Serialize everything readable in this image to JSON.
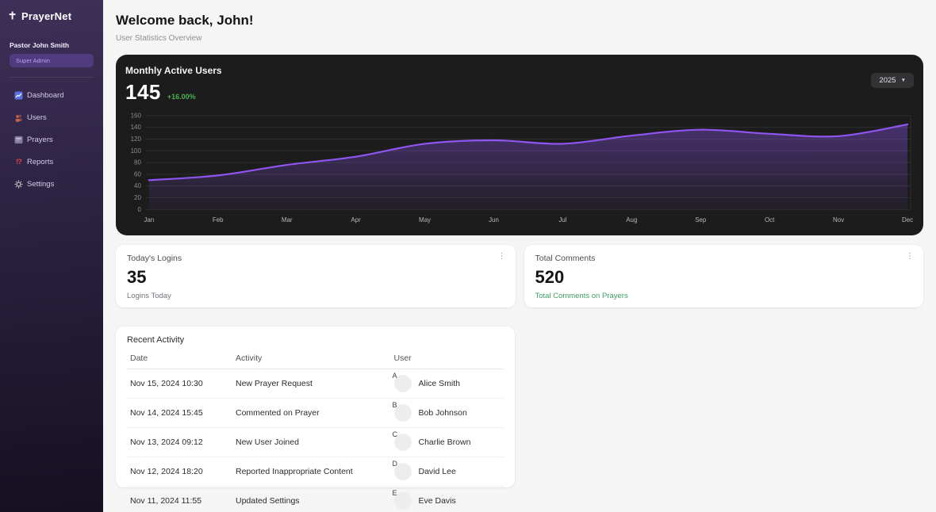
{
  "app": {
    "name": "PrayerNet",
    "logo_icon": "cross-icon"
  },
  "sidebar": {
    "user": {
      "name": "Pastor John Smith",
      "role": "Super Admin"
    },
    "items": [
      {
        "label": "Dashboard",
        "icon": "dashboard-icon"
      },
      {
        "label": "Users",
        "icon": "users-icon"
      },
      {
        "label": "Prayers",
        "icon": "prayers-icon"
      },
      {
        "label": "Reports",
        "icon": "reports-icon",
        "icon_glyph": "!?"
      },
      {
        "label": "Settings",
        "icon": "settings-icon"
      }
    ]
  },
  "header": {
    "title": "Welcome back, John!",
    "subtitle": "User Statistics Overview"
  },
  "chart_card": {
    "title": "Monthly Active Users",
    "value": "145",
    "delta": "+16.00%",
    "delta_color": "#4caf50",
    "year_selector": "2025",
    "chevron": "▼"
  },
  "chart_data": {
    "type": "area",
    "title": "Monthly Active Users",
    "x": [
      "Jan",
      "Feb",
      "Mar",
      "Apr",
      "May",
      "Jun",
      "Jul",
      "Aug",
      "Sep",
      "Oct",
      "Nov",
      "Dec"
    ],
    "series": [
      {
        "name": "Monthly Active Users",
        "values": [
          50,
          58,
          76,
          90,
          112,
          118,
          112,
          126,
          136,
          129,
          125,
          145
        ]
      }
    ],
    "ylim": [
      0,
      160
    ],
    "yticks": [
      0,
      20,
      40,
      60,
      80,
      100,
      120,
      140,
      160
    ],
    "grid": true,
    "legend": "none",
    "line_color": "#8f55f0",
    "fill_color": "#8f55f0",
    "grid_color": "#2e2e30",
    "tick_color": "#8d8d91",
    "xlabel_color": "#b8b8bc"
  },
  "stat_cards": [
    {
      "title": "Today's Logins",
      "value": "35",
      "subtitle": "Logins Today",
      "subtitle_color": "#717179",
      "menu_icon": "kebab-menu-icon",
      "menu_glyph": "⋮"
    },
    {
      "title": "Total Comments",
      "value": "520",
      "subtitle": "Total Comments on Prayers",
      "subtitle_color": "#3f9e63",
      "menu_icon": "kebab-menu-icon",
      "menu_glyph": "⋮"
    }
  ],
  "activity": {
    "title": "Recent Activity",
    "columns": [
      "Date",
      "Activity",
      "User"
    ],
    "rows": [
      {
        "date": "Nov 15, 2024 10:30",
        "activity": "New Prayer Request",
        "initial": "A",
        "user": "Alice Smith"
      },
      {
        "date": "Nov 14, 2024 15:45",
        "activity": "Commented on Prayer",
        "initial": "B",
        "user": "Bob Johnson"
      },
      {
        "date": "Nov 13, 2024 09:12",
        "activity": "New User Joined",
        "initial": "C",
        "user": "Charlie Brown"
      },
      {
        "date": "Nov 12, 2024 18:20",
        "activity": "Reported Inappropriate Content",
        "initial": "D",
        "user": "David Lee"
      },
      {
        "date": "Nov 11, 2024 11:55",
        "activity": "Updated Settings",
        "initial": "E",
        "user": "Eve Davis"
      }
    ]
  }
}
